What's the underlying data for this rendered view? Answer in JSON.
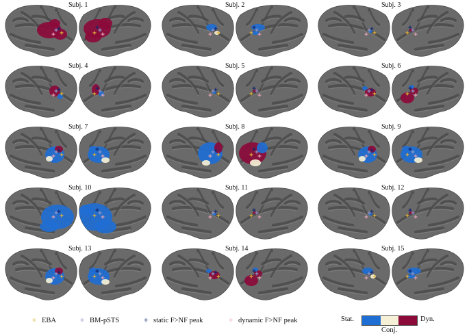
{
  "colors": {
    "brain_fill": "#6a6a6a",
    "brain_dark": "#4a4a4a",
    "brain_light": "#8c8c8c",
    "static": "#1f6ed4",
    "conj": "#f6f1d6",
    "dynamic": "#8b0a3a",
    "eba_marker": "#e0b23a",
    "bm_psts_marker": "#8f96c8",
    "static_peak_marker": "#14286e",
    "dynamic_peak_marker": "#e6a4b6"
  },
  "panels": [
    {
      "label": "Subj. 1",
      "activation": "dynamic-heavy"
    },
    {
      "label": "Subj. 2",
      "activation": "static-sparse"
    },
    {
      "label": "Subj. 3",
      "activation": "sparse"
    },
    {
      "label": "Subj. 4",
      "activation": "mixed-sparse"
    },
    {
      "label": "Subj. 5",
      "activation": "sparse"
    },
    {
      "label": "Subj. 6",
      "activation": "dynamic-moderate"
    },
    {
      "label": "Subj. 7",
      "activation": "static-moderate"
    },
    {
      "label": "Subj. 8",
      "activation": "mixed-heavy"
    },
    {
      "label": "Subj. 9",
      "activation": "static-moderate"
    },
    {
      "label": "Subj. 10",
      "activation": "static-heavy"
    },
    {
      "label": "Subj. 11",
      "activation": "sparse"
    },
    {
      "label": "Subj. 12",
      "activation": "sparse"
    },
    {
      "label": "Subj. 13",
      "activation": "static-moderate"
    },
    {
      "label": "Subj. 14",
      "activation": "dynamic-moderate"
    },
    {
      "label": "Subj. 15",
      "activation": "static-sparse"
    }
  ],
  "legend": {
    "eba": {
      "symbol": "+",
      "label": "EBA"
    },
    "bm_psts": {
      "symbol": "+",
      "label": "BM-pSTS"
    },
    "static_peak": {
      "symbol": "+",
      "label": "static F>NF peak"
    },
    "dynamic_peak": {
      "symbol": "+",
      "label": "dynamic F>NF peak"
    },
    "colorbar": {
      "left_label": "Stat.",
      "right_label": "Dyn.",
      "bottom_label": "Conj."
    }
  }
}
